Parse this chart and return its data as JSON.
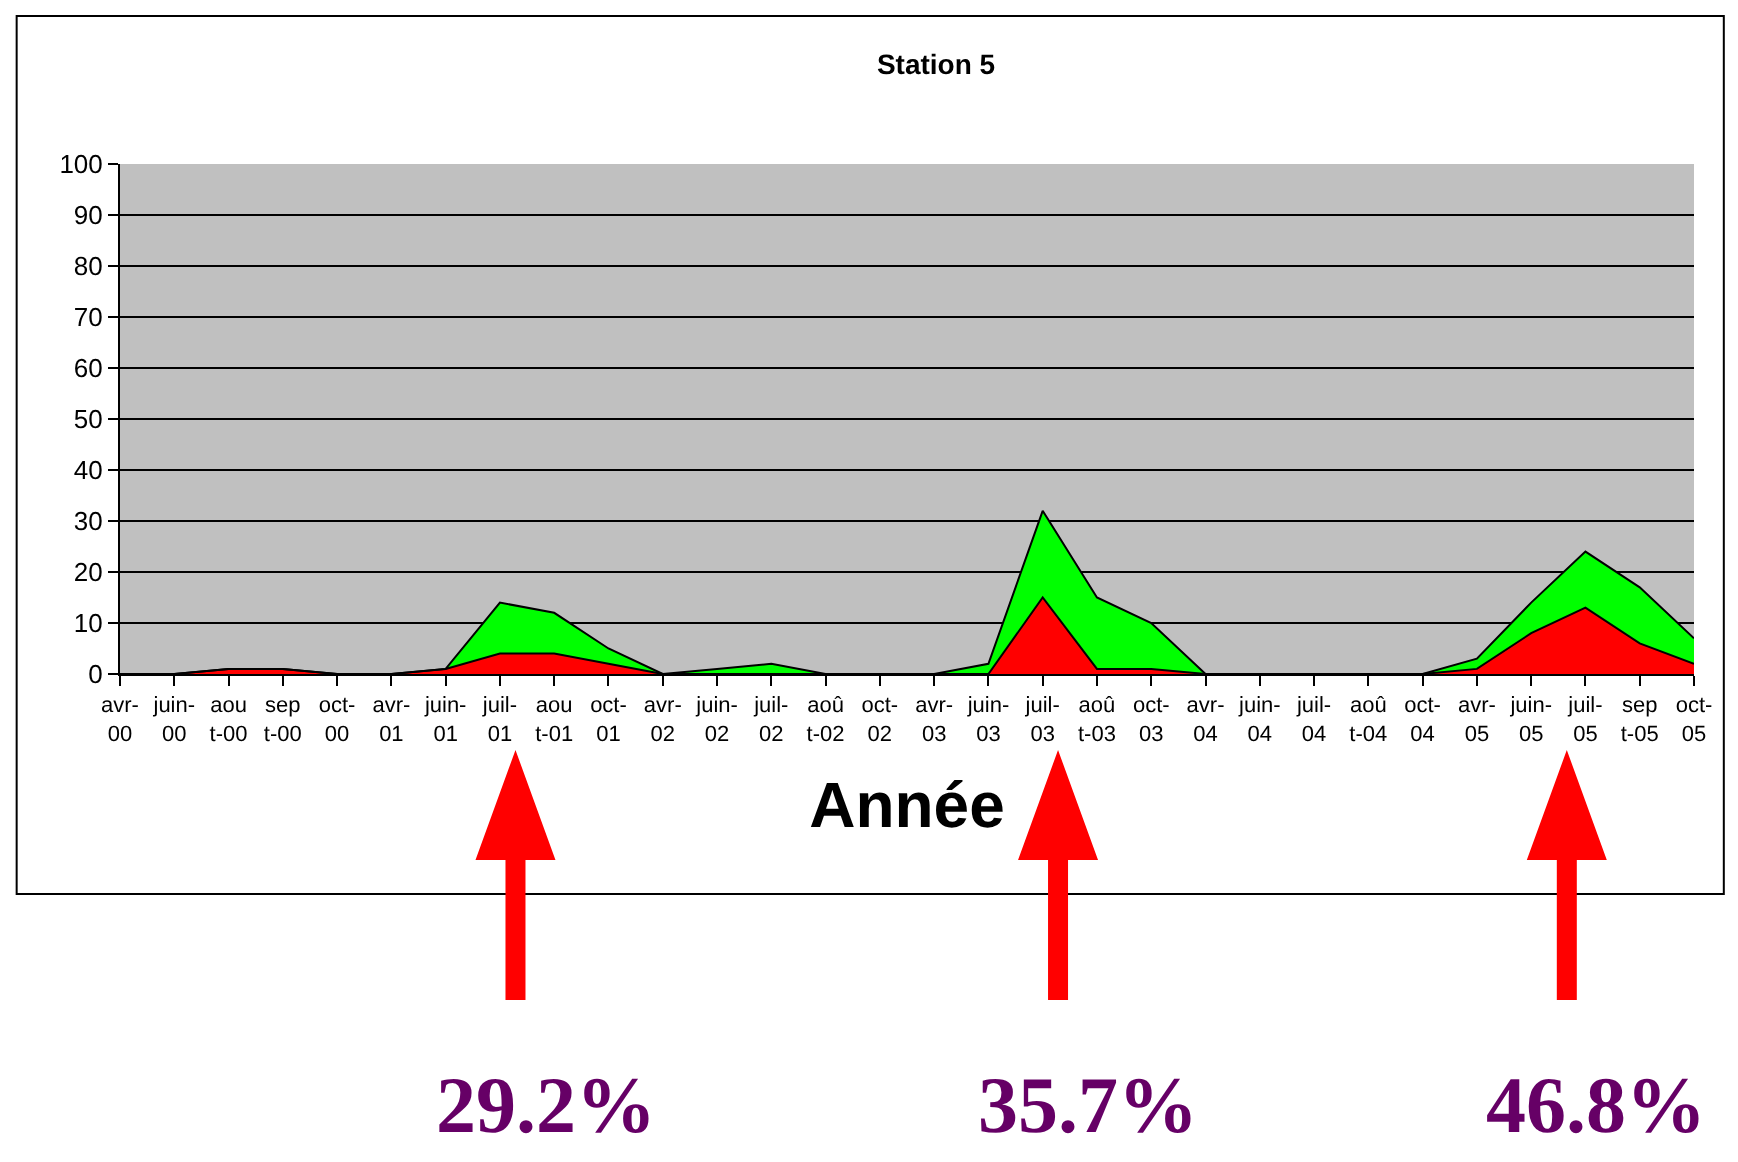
{
  "chart_data": {
    "type": "area",
    "stacked": true,
    "title": "Station 5",
    "xlabel": "Année",
    "categories": [
      "avr-\n00",
      "juin-\n00",
      "aou\nt-00",
      "sep\nt-00",
      "oct-\n00",
      "avr-\n01",
      "juin-\n01",
      "juil-\n01",
      "aou\nt-01",
      "oct-\n01",
      "avr-\n02",
      "juin-\n02",
      "juil-\n02",
      "aoû\nt-02",
      "oct-\n02",
      "avr-\n03",
      "juin-\n03",
      "juil-\n03",
      "aoû\nt-03",
      "oct-\n03",
      "avr-\n04",
      "juin-\n04",
      "juil-\n04",
      "aoû\nt-04",
      "oct-\n04",
      "avr-\n05",
      "juin-\n05",
      "juil-\n05",
      "sep\nt-05",
      "oct-\n05"
    ],
    "series": [
      {
        "color": "#ff0000",
        "values": [
          0,
          0,
          1,
          1,
          0,
          0,
          1,
          4,
          4,
          2,
          0,
          0,
          0,
          0,
          0,
          0,
          0,
          15,
          1,
          1,
          0,
          0,
          0,
          0,
          0,
          1,
          8,
          13,
          6,
          2
        ]
      },
      {
        "color": "#00ff00",
        "values": [
          0,
          0,
          0,
          0,
          0,
          0,
          0,
          10,
          8,
          3,
          0,
          1,
          2,
          0,
          0,
          0,
          2,
          17,
          14,
          9,
          0,
          0,
          0,
          0,
          0,
          2,
          6,
          11,
          11,
          5
        ]
      }
    ],
    "ylim": [
      0,
      100
    ],
    "yticks": [
      0,
      10,
      20,
      30,
      40,
      50,
      60,
      70,
      80,
      90,
      100
    ],
    "grid": "y",
    "annotations": [
      "29.2%",
      "35.7%",
      "46.8%"
    ]
  }
}
